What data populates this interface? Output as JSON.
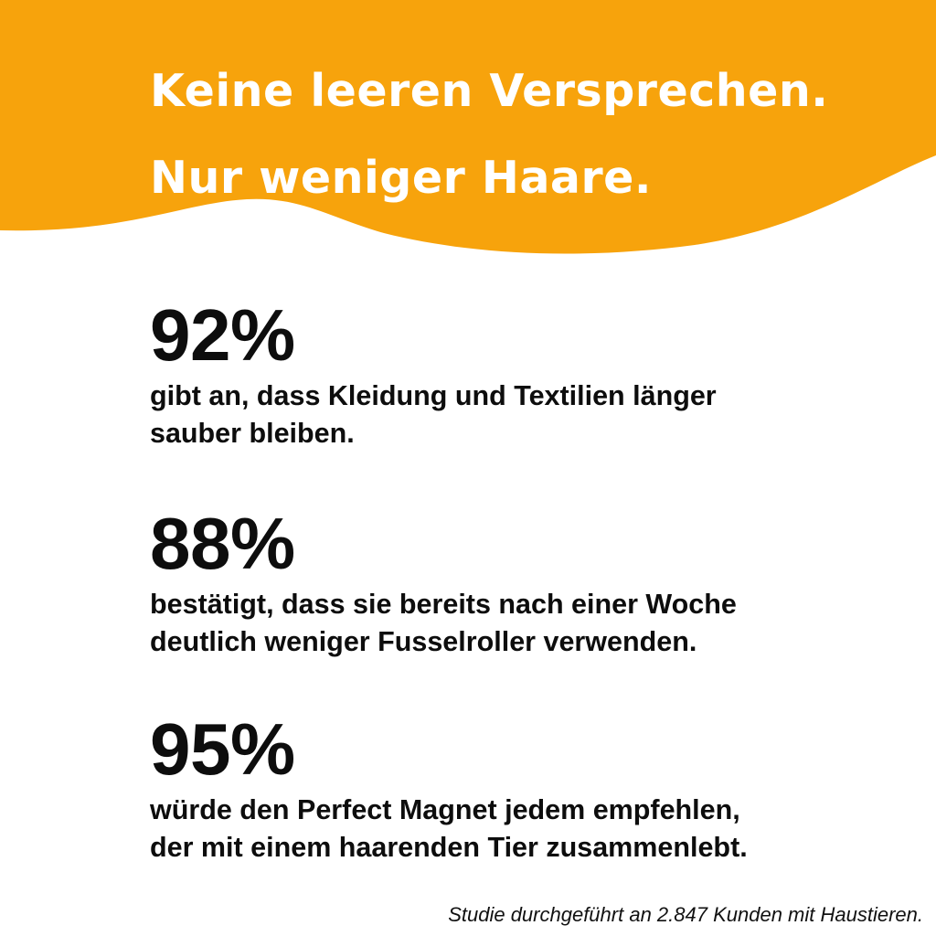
{
  "banner": {
    "headline_line1": "Keine leeren Versprechen.",
    "headline_line2": "Nur weniger Haare.",
    "color": "#F7A30C"
  },
  "stats": [
    {
      "value": "92%",
      "text_line1": "gibt an, dass Kleidung und Textilien länger",
      "text_line2": "sauber bleiben."
    },
    {
      "value": "88%",
      "text_line1": "bestätigt, dass sie bereits nach einer Woche",
      "text_line2": "deutlich weniger Fusselroller verwenden."
    },
    {
      "value": "95%",
      "text_line1": "würde den Perfect Magnet jedem empfehlen,",
      "text_line2": "der mit einem haarenden Tier zusammenlebt."
    }
  ],
  "footnote": "Studie durchgeführt an 2.847 Kunden mit Haustieren."
}
